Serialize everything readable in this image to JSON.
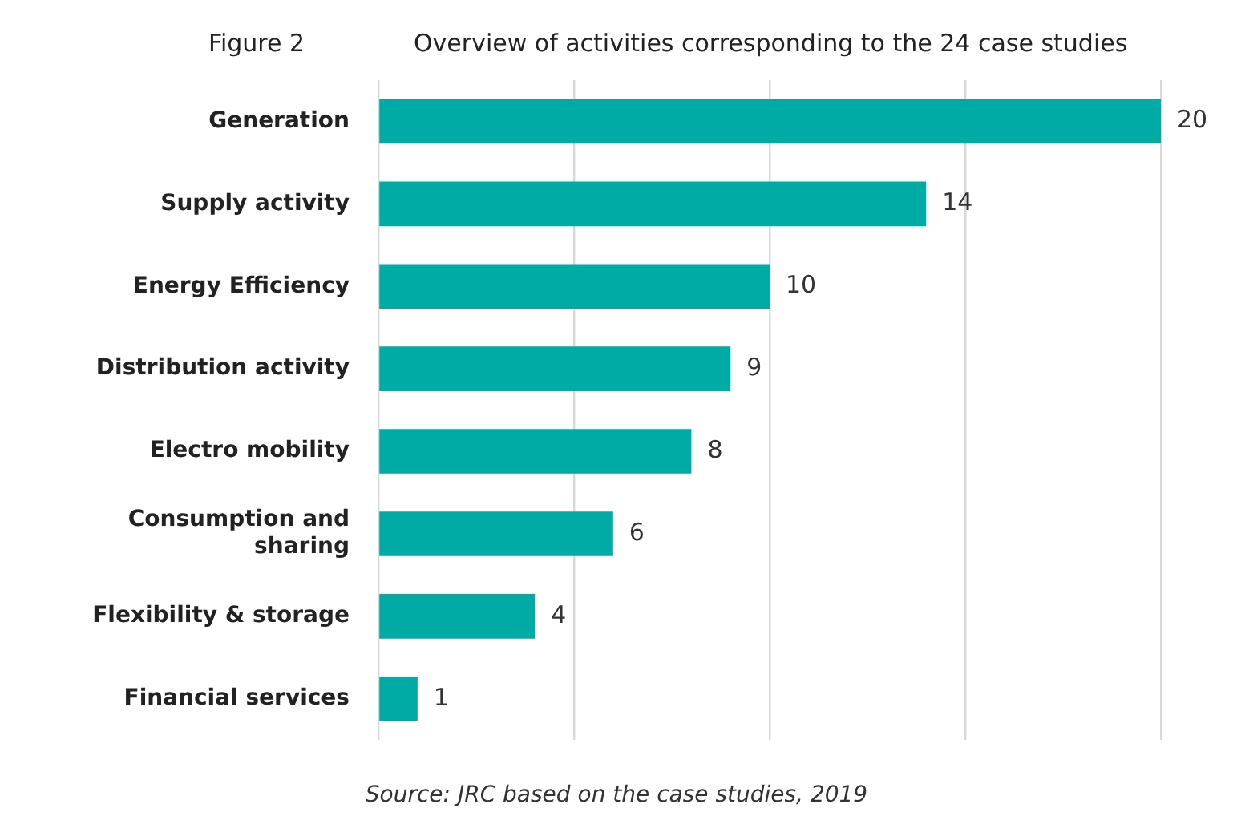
{
  "chart_data": {
    "type": "bar",
    "orientation": "horizontal",
    "title": "Figure 2",
    "subtitle": "Overview of activities corresponding to the 24 case studies",
    "categories": [
      "Generation",
      "Supply activity",
      "Energy Efficiency",
      "Distribution activity",
      "Electro mobility",
      "Consumption and sharing",
      "Flexibility & storage",
      "Financial services"
    ],
    "values": [
      20,
      14,
      10,
      9,
      8,
      6,
      4,
      1
    ],
    "color": "#00aaa5",
    "xlim": [
      0,
      20
    ],
    "xticks": [
      {
        "value": 0,
        "label": null
      },
      {
        "value": 5,
        "label": null
      },
      {
        "value": 10,
        "label": null
      },
      {
        "value": 15,
        "label": null
      },
      {
        "value": 20,
        "label": null
      }
    ],
    "grid": "x",
    "tick_labels": "y",
    "data_labels": true,
    "annotations": [
      "Source: JRC based on the case studies, 2019"
    ]
  }
}
